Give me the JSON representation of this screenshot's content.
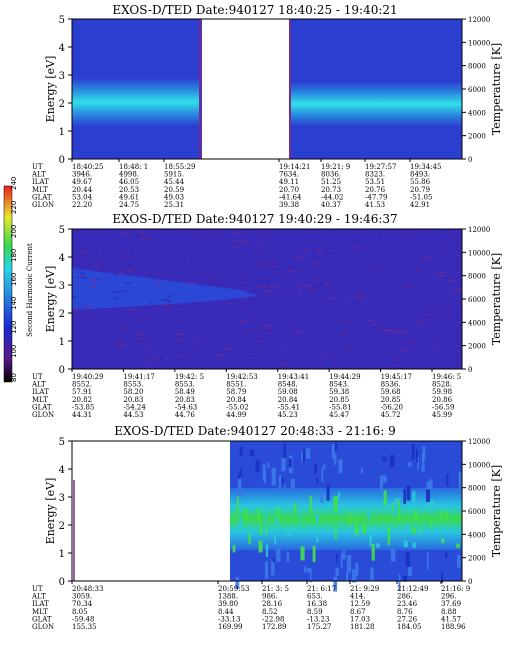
{
  "colors": {
    "background": "#2a3fd0",
    "dark_band": "#1a2aa8",
    "cyan_band": "#28d6e8",
    "green_band": "#3ad84a",
    "purple_noise": "#7a2b8a"
  },
  "colorbar": {
    "label": "Second Harmonic Current",
    "ticks": [
      "240",
      "220",
      "200",
      "180",
      "160",
      "140",
      "120",
      "100",
      "80"
    ]
  },
  "common": {
    "ylabel_left": "Energy [eV]",
    "ylabel_right": "Temperature [K]",
    "energy_ticks": [
      "5",
      "4",
      "3",
      "2",
      "1",
      "0"
    ],
    "temp_ticks": [
      "12000",
      "10000",
      "8000",
      "6000",
      "4000",
      "2000",
      "0"
    ],
    "row_labels": [
      "UT",
      "ALT",
      "ILAT",
      "MLT",
      "GLAT",
      "GLON"
    ]
  },
  "chart_data": [
    {
      "type": "heatmap",
      "title": "EXOS-D/TED   Date:940127   18:40:25 - 19:40:21",
      "ylim_energy": [
        0,
        5
      ],
      "ylim_temperature": [
        0,
        12000
      ],
      "gap": true,
      "columns": [
        [
          "18:40:25",
          "3946.",
          "49.67",
          "20.44",
          "53.04",
          "22.20"
        ],
        [
          "18:48: 1",
          "4998.",
          "46.05",
          "20.53",
          "49.61",
          "24.75"
        ],
        [
          "18:55:29",
          "5915.",
          "45.44",
          "20.59",
          "49.03",
          "25.31"
        ],
        [
          "19:14:21",
          "7634.",
          "49.11",
          "20.70",
          "-41.64",
          "39.38"
        ],
        [
          "19:21: 9",
          "8036.",
          "51.25",
          "20.73",
          "-44.02",
          "40.37"
        ],
        [
          "19:27:57",
          "8323.",
          "53.51",
          "20.76",
          "-47.79",
          "41.53"
        ],
        [
          "19:34:45",
          "8493.",
          "55.86",
          "20.79",
          "-51.05",
          "42.91"
        ]
      ]
    },
    {
      "type": "heatmap",
      "title": "EXOS-D/TED   Date:940127   19:40:29 - 19:46:37",
      "ylim_energy": [
        0,
        5
      ],
      "ylim_temperature": [
        0,
        12000
      ],
      "columns": [
        [
          "19:40:29",
          "8552.",
          "57.91",
          "20.82",
          "-53.85",
          "44.31"
        ],
        [
          "19:41:17",
          "8553.",
          "58.20",
          "20.83",
          "-54.24",
          "44.53"
        ],
        [
          "19:42: 5",
          "8553.",
          "58.49",
          "20.83",
          "-54.63",
          "44.76"
        ],
        [
          "19:42:53",
          "8551.",
          "58.79",
          "20.84",
          "-55.02",
          "44.99"
        ],
        [
          "19:43:41",
          "8548.",
          "59.08",
          "20.84",
          "-55.41",
          "45.23"
        ],
        [
          "19:44:29",
          "8543.",
          "59.38",
          "20.85",
          "-55.81",
          "45.47"
        ],
        [
          "19:45:17",
          "8536.",
          "59.68",
          "20.85",
          "-56.20",
          "45.72"
        ],
        [
          "19:46: 5",
          "8528.",
          "59.98",
          "20.86",
          "-56.59",
          "45.99"
        ]
      ]
    },
    {
      "type": "heatmap",
      "title": "EXOS-D/TED   Date:940127   20:48:33 - 21:16: 9",
      "ylim_energy": [
        0,
        5
      ],
      "ylim_temperature": [
        0,
        12000
      ],
      "columns": [
        [
          "20:48:33",
          "3059.",
          "70.34",
          "8.05",
          "-59.48",
          "155.35"
        ],
        [
          "20:59:53",
          "1388.",
          "39.80",
          "8.44",
          "-33.13",
          "169.99"
        ],
        [
          "21: 3: 5",
          "986.",
          "28.16",
          "8.52",
          "-22.98",
          "172.89"
        ],
        [
          "21: 6:17",
          "653.",
          "16.38",
          "8.59",
          "-13.23",
          "175.27"
        ],
        [
          "21: 9:29",
          "414.",
          "12.59",
          "8.67",
          "17.03",
          "181.28"
        ],
        [
          "21:12:49",
          "286.",
          "23.46",
          "8.76",
          "27.26",
          "184.05"
        ],
        [
          "21:16: 9",
          "296.",
          "37.69",
          "8.88",
          "41.57",
          "188.96"
        ]
      ]
    }
  ]
}
